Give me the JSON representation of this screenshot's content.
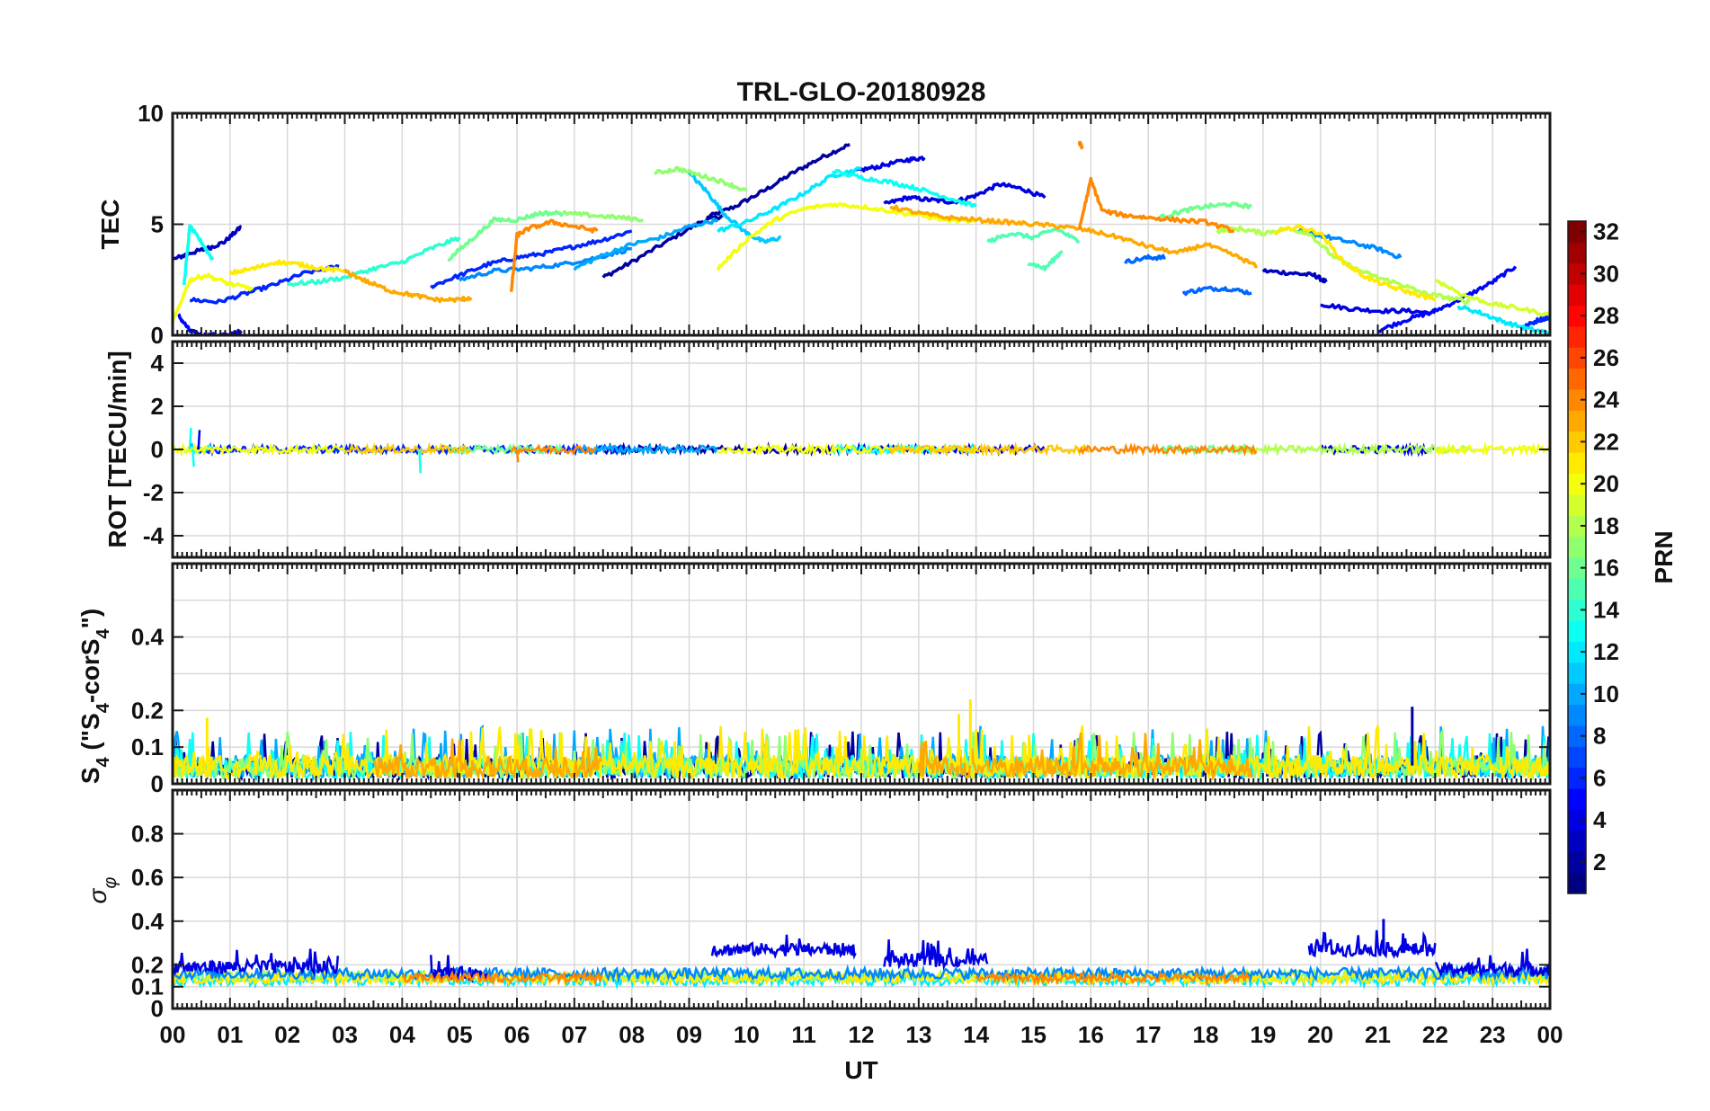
{
  "chart_data": {
    "type": "line",
    "title": "TRL-GLO-20180928",
    "xlabel": "UT",
    "x_tick_labels": [
      "00",
      "01",
      "02",
      "03",
      "04",
      "05",
      "06",
      "07",
      "08",
      "09",
      "10",
      "11",
      "12",
      "13",
      "14",
      "15",
      "16",
      "17",
      "18",
      "19",
      "20",
      "21",
      "22",
      "23",
      "00"
    ],
    "xlim_hours": [
      0,
      24
    ],
    "panels": [
      {
        "name": "tec",
        "ylabel": "TEC",
        "ylim": [
          0,
          10
        ],
        "yticks": [
          0,
          5,
          10
        ],
        "series": [
          {
            "prn": 2,
            "x": [
              9.3,
              9.8,
              10.3,
              10.8,
              11.3,
              11.8
            ],
            "y": [
              5.3,
              5.8,
              6.5,
              7.3,
              8.0,
              8.6
            ]
          },
          {
            "prn": 2,
            "x": [
              7.5,
              8.0,
              8.6,
              9.2,
              9.6
            ],
            "y": [
              2.6,
              3.3,
              4.2,
              5.1,
              5.4
            ]
          },
          {
            "prn": 3,
            "x": [
              0.0,
              0.3,
              0.6,
              0.9,
              1.2
            ],
            "y": [
              3.4,
              3.7,
              3.9,
              4.2,
              4.9
            ]
          },
          {
            "prn": 3,
            "x": [
              19.0,
              19.5,
              19.9,
              20.1
            ],
            "y": [
              2.9,
              2.8,
              2.7,
              2.4
            ]
          },
          {
            "prn": 4,
            "x": [
              12.4,
              12.8,
              13.2,
              13.6,
              14.0,
              14.4,
              14.8,
              15.2
            ],
            "y": [
              5.9,
              6.2,
              6.1,
              6.0,
              6.3,
              6.8,
              6.6,
              6.2
            ]
          },
          {
            "prn": 4,
            "x": [
              11.9,
              12.3,
              12.8,
              13.1
            ],
            "y": [
              7.4,
              7.6,
              7.9,
              8.0
            ]
          },
          {
            "prn": 4,
            "x": [
              20.0,
              20.5,
              21.0,
              21.5,
              22.0
            ],
            "y": [
              1.4,
              1.2,
              1.1,
              1.1,
              1.0
            ]
          },
          {
            "prn": 5,
            "x": [
              0.1,
              0.3,
              0.5,
              0.8,
              1.0,
              1.2
            ],
            "y": [
              0.9,
              0.2,
              0.0,
              0.0,
              0.0,
              0.2
            ]
          },
          {
            "prn": 5,
            "x": [
              21.0,
              21.5,
              22.0,
              22.5,
              23.0,
              23.4
            ],
            "y": [
              0.2,
              0.7,
              1.1,
              1.7,
              2.4,
              3.1
            ]
          },
          {
            "prn": 6,
            "x": [
              0.3,
              0.8,
              1.3,
              1.8,
              2.3,
              2.9
            ],
            "y": [
              1.6,
              1.5,
              1.9,
              2.3,
              2.8,
              3.1
            ]
          },
          {
            "prn": 6,
            "x": [
              4.5,
              5.0,
              5.5,
              6.0,
              6.5,
              7.0,
              7.5,
              8.0
            ],
            "y": [
              2.2,
              2.7,
              3.2,
              3.5,
              3.7,
              4.0,
              4.3,
              4.7
            ]
          },
          {
            "prn": 6,
            "x": [
              23.5,
              23.8,
              24.0
            ],
            "y": [
              0.3,
              0.7,
              0.8
            ]
          },
          {
            "prn": 8,
            "x": [
              17.6,
              18.0,
              18.4,
              18.8
            ],
            "y": [
              1.9,
              2.1,
              2.1,
              1.9
            ]
          },
          {
            "prn": 8,
            "x": [
              16.6,
              17.0,
              17.3
            ],
            "y": [
              3.3,
              3.5,
              3.5
            ]
          },
          {
            "prn": 9,
            "x": [
              5.0,
              5.6,
              6.2,
              6.8,
              7.4,
              8.0
            ],
            "y": [
              2.5,
              2.9,
              3.0,
              3.2,
              3.5,
              3.9
            ]
          },
          {
            "prn": 9,
            "x": [
              19.6,
              20.0,
              20.5,
              21.0,
              21.4
            ],
            "y": [
              4.7,
              4.5,
              4.2,
              3.9,
              3.5
            ]
          },
          {
            "prn": 10,
            "x": [
              7.0,
              7.5,
              8.0,
              8.5,
              9.0,
              9.5
            ],
            "y": [
              3.0,
              3.6,
              4.1,
              4.4,
              4.9,
              5.2
            ]
          },
          {
            "prn": 11,
            "x": [
              9.0,
              9.3,
              9.6,
              10.0,
              10.3,
              10.6
            ],
            "y": [
              7.3,
              6.5,
              5.5,
              4.6,
              4.2,
              4.4
            ]
          },
          {
            "prn": 12,
            "x": [
              9.5,
              10.0,
              10.5,
              11.0,
              11.5,
              12.0
            ],
            "y": [
              4.7,
              5.1,
              5.7,
              6.4,
              7.2,
              7.5
            ]
          },
          {
            "prn": 12,
            "x": [
              22.4,
              22.8,
              23.2,
              23.6,
              24.0
            ],
            "y": [
              1.3,
              1.0,
              0.6,
              0.3,
              0.1
            ]
          },
          {
            "prn": 13,
            "x": [
              11.5,
              12.0,
              12.5,
              13.0,
              13.5,
              14.0
            ],
            "y": [
              7.4,
              7.1,
              6.9,
              6.6,
              6.2,
              5.8
            ]
          },
          {
            "prn": 13,
            "x": [
              0.2,
              0.3,
              0.5,
              0.7
            ],
            "y": [
              2.3,
              4.9,
              4.2,
              3.4
            ]
          },
          {
            "prn": 14,
            "x": [
              2.0,
              2.5,
              3.0,
              3.5,
              4.0,
              4.5,
              5.0
            ],
            "y": [
              2.3,
              2.4,
              2.6,
              3.0,
              3.3,
              3.9,
              4.4
            ]
          },
          {
            "prn": 15,
            "x": [
              14.2,
              14.6,
              15.0,
              15.4,
              15.8
            ],
            "y": [
              4.2,
              4.6,
              4.4,
              4.8,
              4.2
            ]
          },
          {
            "prn": 15,
            "x": [
              14.9,
              15.2,
              15.5
            ],
            "y": [
              3.3,
              3.0,
              3.8
            ]
          },
          {
            "prn": 16,
            "x": [
              4.8,
              5.2,
              5.6,
              6.0,
              6.4,
              6.8
            ],
            "y": [
              3.4,
              4.3,
              5.2,
              5.2,
              5.5,
              5.5
            ]
          },
          {
            "prn": 16,
            "x": [
              17.2,
              17.6,
              18.0,
              18.4,
              18.8
            ],
            "y": [
              5.3,
              5.6,
              5.8,
              5.9,
              5.8
            ]
          },
          {
            "prn": 17,
            "x": [
              8.4,
              8.8,
              9.2,
              9.6,
              10.0
            ],
            "y": [
              7.3,
              7.5,
              7.2,
              6.9,
              6.5
            ]
          },
          {
            "prn": 17,
            "x": [
              6.8,
              7.3,
              7.8,
              8.2
            ],
            "y": [
              5.5,
              5.4,
              5.3,
              5.2
            ]
          },
          {
            "prn": 18,
            "x": [
              18.2,
              18.6,
              19.0,
              19.4,
              19.8,
              20.2,
              20.6,
              21.0,
              21.4,
              21.8,
              22.2,
              22.6
            ],
            "y": [
              4.7,
              4.8,
              4.6,
              4.8,
              4.6,
              3.6,
              3.0,
              2.6,
              2.3,
              1.9,
              1.7,
              1.5
            ]
          },
          {
            "prn": 19,
            "x": [
              22.0,
              22.5,
              23.0,
              23.5,
              24.0
            ],
            "y": [
              2.5,
              1.8,
              1.4,
              1.2,
              0.9
            ]
          },
          {
            "prn": 20,
            "x": [
              9.5,
              10.0,
              10.5,
              11.0,
              11.5,
              12.0,
              12.5,
              13.0,
              13.5,
              14.0
            ],
            "y": [
              3.0,
              4.3,
              5.2,
              5.7,
              5.9,
              5.8,
              5.6,
              5.4,
              5.2,
              5.1
            ]
          },
          {
            "prn": 20,
            "x": [
              0.0,
              0.3,
              0.6,
              1.0,
              1.4
            ],
            "y": [
              0.6,
              2.5,
              2.7,
              2.3,
              2.1
            ]
          },
          {
            "prn": 21,
            "x": [
              19.2,
              19.6,
              20.0,
              20.4,
              20.8,
              21.2,
              21.6,
              22.0
            ],
            "y": [
              4.6,
              4.9,
              4.6,
              3.3,
              2.6,
              2.2,
              1.9,
              1.6
            ]
          },
          {
            "prn": 21,
            "x": [
              1.0,
              1.4,
              1.8,
              2.2,
              2.6,
              3.0
            ],
            "y": [
              2.8,
              3.0,
              3.3,
              3.2,
              3.0,
              2.9
            ]
          },
          {
            "prn": 23,
            "x": [
              12.5,
              13.0,
              13.5,
              14.0,
              14.5,
              15.0,
              15.5,
              16.0,
              16.5,
              17.0,
              17.5,
              18.0,
              18.5,
              18.9
            ],
            "y": [
              5.8,
              5.5,
              5.3,
              5.2,
              5.1,
              5.0,
              4.9,
              4.7,
              4.4,
              4.0,
              3.7,
              4.1,
              3.6,
              3.1
            ]
          },
          {
            "prn": 23,
            "x": [
              3.0,
              3.4,
              3.8,
              4.2,
              4.6,
              5.0,
              5.2
            ],
            "y": [
              2.9,
              2.4,
              2.0,
              1.8,
              1.6,
              1.6,
              1.7
            ]
          },
          {
            "prn": 24,
            "x": [
              5.9,
              6.0,
              6.2,
              6.6,
              7.0,
              7.4
            ],
            "y": [
              1.9,
              4.5,
              4.8,
              5.1,
              4.9,
              4.7
            ]
          },
          {
            "prn": 24,
            "x": [
              15.8,
              16.0,
              16.2,
              16.6,
              17.0,
              17.5,
              18.0,
              18.5
            ],
            "y": [
              4.8,
              7.0,
              5.6,
              5.4,
              5.3,
              5.2,
              5.1,
              4.7
            ]
          },
          {
            "prn": 24,
            "x": [
              15.8,
              15.85
            ],
            "y": [
              8.7,
              8.4
            ]
          }
        ]
      },
      {
        "name": "rot",
        "ylabel": "ROT [TECU/min]",
        "ylim": [
          -5,
          5
        ],
        "yticks": [
          -4,
          -2,
          0,
          2,
          4
        ],
        "series_note": "ROT fluctuates around 0 with amplitude ~0.3 TECU/min; spikes near 00:20 (+1.0, -0.8) and 04:30 (-1.1)"
      },
      {
        "name": "s4",
        "ylabel": "S4 (\"S4-corS4\")",
        "ylabel_main": "S",
        "ylabel_sub": "4",
        "ylabel_rest": " (\"S",
        "ylabel_sub2": "4",
        "ylabel_rest2": "-corS",
        "ylabel_sub3": "4",
        "ylabel_end": "\")",
        "ylim": [
          0,
          0.6
        ],
        "yticks": [
          0,
          0.1,
          0.2,
          0.4
        ],
        "peaks": [
          {
            "x": 13.9,
            "y": 0.23
          },
          {
            "x": 21.6,
            "y": 0.21
          },
          {
            "x": 0.6,
            "y": 0.18
          },
          {
            "x": 13.7,
            "y": 0.19
          }
        ]
      },
      {
        "name": "sigma",
        "ylabel": "σ_φ",
        "ylabel_main": "σ",
        "ylabel_sub": "φ",
        "ylim": [
          0,
          1.0
        ],
        "yticks": [
          0,
          0.1,
          0.2,
          0.4,
          0.6,
          0.8
        ],
        "elevated_intervals": [
          {
            "from": 9.4,
            "to": 11.9,
            "level": 0.27
          },
          {
            "from": 12.4,
            "to": 14.2,
            "level": 0.22
          },
          {
            "from": 19.8,
            "to": 22.0,
            "level": 0.27
          }
        ],
        "peaks": [
          {
            "x": 21.1,
            "y": 0.41
          }
        ]
      }
    ],
    "colorbar": {
      "label": "PRN",
      "range": [
        1,
        32
      ],
      "colormap": "jet",
      "tick_values": [
        2,
        4,
        6,
        8,
        10,
        12,
        14,
        16,
        18,
        20,
        22,
        24,
        26,
        28,
        30,
        32
      ]
    }
  }
}
